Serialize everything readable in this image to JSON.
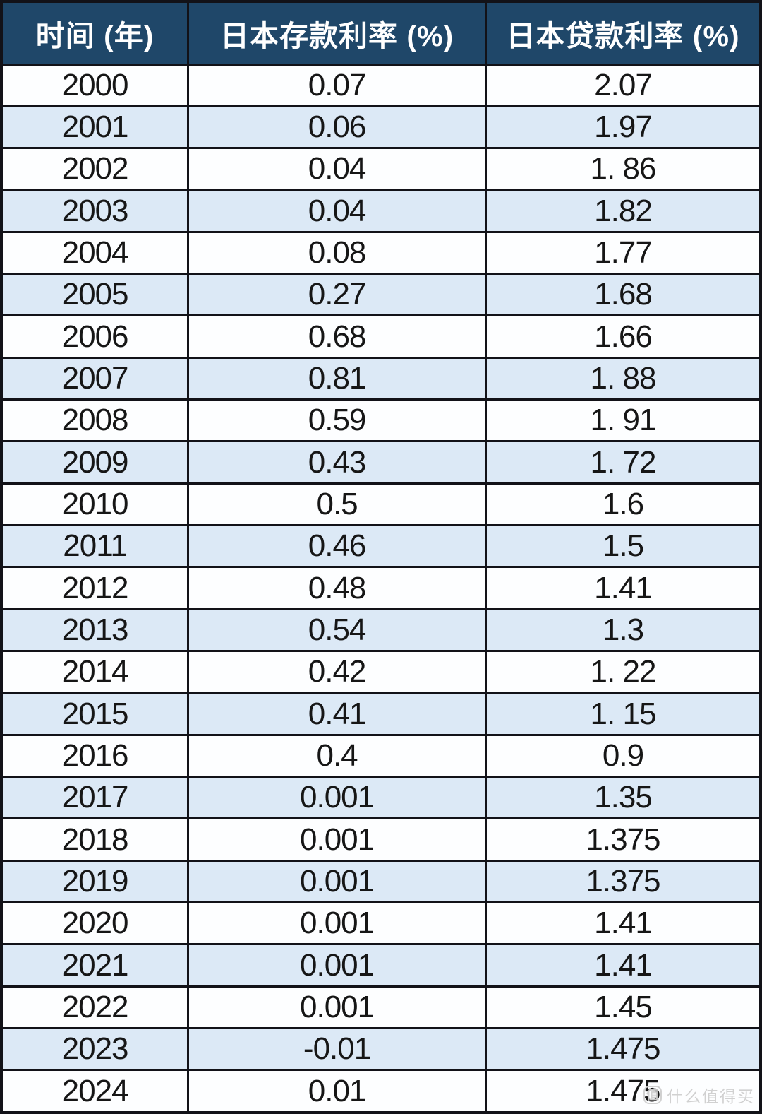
{
  "table": {
    "columns": [
      {
        "label": "时间 (年)"
      },
      {
        "label": "日本存款利率 (%)"
      },
      {
        "label": "日本贷款利率 (%)"
      }
    ],
    "rows": [
      {
        "year": "2000",
        "deposit": "0.07",
        "loan": "2.07"
      },
      {
        "year": "2001",
        "deposit": "0.06",
        "loan": "1.97"
      },
      {
        "year": "2002",
        "deposit": "0.04",
        "loan": "1. 86"
      },
      {
        "year": "2003",
        "deposit": "0.04",
        "loan": "1.82"
      },
      {
        "year": "2004",
        "deposit": "0.08",
        "loan": "1.77"
      },
      {
        "year": "2005",
        "deposit": "0.27",
        "loan": "1.68"
      },
      {
        "year": "2006",
        "deposit": "0.68",
        "loan": "1.66"
      },
      {
        "year": "2007",
        "deposit": "0.81",
        "loan": "1. 88"
      },
      {
        "year": "2008",
        "deposit": "0.59",
        "loan": "1. 91"
      },
      {
        "year": "2009",
        "deposit": "0.43",
        "loan": "1. 72"
      },
      {
        "year": "2010",
        "deposit": "0.5",
        "loan": "1.6"
      },
      {
        "year": "2011",
        "deposit": "0.46",
        "loan": "1.5"
      },
      {
        "year": "2012",
        "deposit": "0.48",
        "loan": "1.41"
      },
      {
        "year": "2013",
        "deposit": "0.54",
        "loan": "1.3"
      },
      {
        "year": "2014",
        "deposit": "0.42",
        "loan": "1. 22"
      },
      {
        "year": "2015",
        "deposit": "0.41",
        "loan": "1. 15"
      },
      {
        "year": "2016",
        "deposit": "0.4",
        "loan": "0.9"
      },
      {
        "year": "2017",
        "deposit": "0.001",
        "loan": "1.35"
      },
      {
        "year": "2018",
        "deposit": "0.001",
        "loan": "1.375"
      },
      {
        "year": "2019",
        "deposit": "0.001",
        "loan": "1.375"
      },
      {
        "year": "2020",
        "deposit": "0.001",
        "loan": "1.41"
      },
      {
        "year": "2021",
        "deposit": "0.001",
        "loan": "1.41"
      },
      {
        "year": "2022",
        "deposit": "0.001",
        "loan": "1.45"
      },
      {
        "year": "2023",
        "deposit": "-0.01",
        "loan": "1.475"
      },
      {
        "year": "2024",
        "deposit": "0.01",
        "loan": "1.475"
      }
    ]
  },
  "watermark": {
    "badge": "值",
    "text": "什么值得买"
  },
  "colors": {
    "header_bg": "#1F4769",
    "header_fg": "#FFFFFF",
    "row_bg": "#FDFEFF",
    "row_alt_bg": "#DCE9F6",
    "border": "#121218",
    "cell_fg": "#161616",
    "watermark_fg": "#CFCFCF"
  }
}
